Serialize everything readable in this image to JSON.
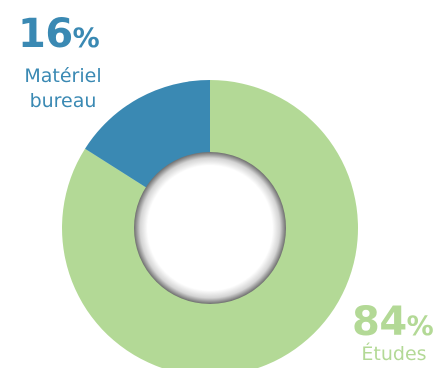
{
  "chart_data": {
    "type": "pie",
    "donut": true,
    "title": "",
    "slices": [
      {
        "label": "Matériel bureau",
        "label_lines": [
          "Matériel",
          "bureau"
        ],
        "value": 16,
        "value_text": "16",
        "unit": "%",
        "color": "#3a89b3"
      },
      {
        "label": "Études",
        "label_lines": [
          "Études"
        ],
        "value": 84,
        "value_text": "84",
        "unit": "%",
        "color": "#b3d996"
      }
    ],
    "legend": "none"
  }
}
